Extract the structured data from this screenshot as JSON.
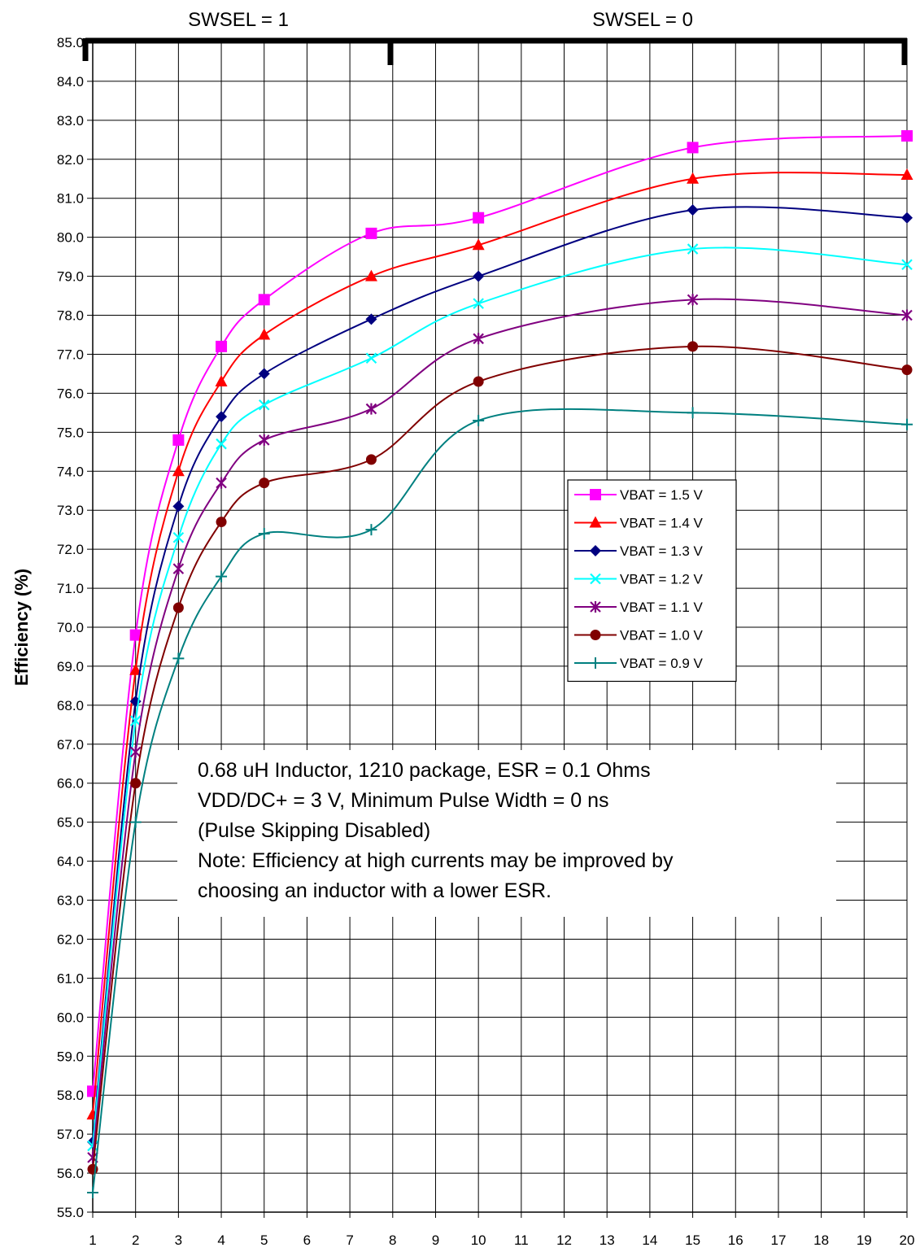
{
  "chart_data": {
    "type": "line",
    "title": "",
    "xlabel": "",
    "ylabel": "Efficiency (%)",
    "xlim": [
      1,
      20
    ],
    "ylim": [
      55,
      85
    ],
    "x_ticks": [
      1,
      2,
      3,
      4,
      5,
      6,
      7,
      8,
      9,
      10,
      11,
      12,
      13,
      14,
      15,
      16,
      17,
      18,
      19,
      20
    ],
    "y_ticks": [
      "55.0",
      "56.0",
      "57.0",
      "58.0",
      "59.0",
      "60.0",
      "61.0",
      "62.0",
      "63.0",
      "64.0",
      "65.0",
      "66.0",
      "67.0",
      "68.0",
      "69.0",
      "70.0",
      "71.0",
      "72.0",
      "73.0",
      "74.0",
      "75.0",
      "76.0",
      "77.0",
      "78.0",
      "79.0",
      "80.0",
      "81.0",
      "82.0",
      "83.0",
      "84.0",
      "85.0"
    ],
    "grid": true,
    "legend_position": "right-middle",
    "x": [
      1,
      2,
      3,
      4,
      5,
      7.5,
      10,
      15,
      20
    ],
    "series": [
      {
        "name": "VBAT = 1.5 V",
        "color": "#ff00ff",
        "marker": "square",
        "values": [
          58.1,
          69.8,
          74.8,
          77.2,
          78.4,
          80.1,
          80.5,
          82.3,
          82.6
        ]
      },
      {
        "name": "VBAT = 1.4 V",
        "color": "#ff0000",
        "marker": "triangle",
        "values": [
          57.5,
          68.9,
          74.0,
          76.3,
          77.5,
          79.0,
          79.8,
          81.5,
          81.6
        ]
      },
      {
        "name": "VBAT = 1.3 V",
        "color": "#000080",
        "marker": "diamond",
        "values": [
          56.8,
          68.1,
          73.1,
          75.4,
          76.5,
          77.9,
          79.0,
          80.7,
          80.5
        ]
      },
      {
        "name": "VBAT = 1.2 V",
        "color": "#00ffff",
        "marker": "x",
        "values": [
          56.7,
          67.6,
          72.3,
          74.7,
          75.7,
          76.9,
          78.3,
          79.7,
          79.3
        ]
      },
      {
        "name": "VBAT = 1.1 V",
        "color": "#800080",
        "marker": "asterisk",
        "values": [
          56.4,
          66.8,
          71.5,
          73.7,
          74.8,
          75.6,
          77.4,
          78.4,
          78.0
        ]
      },
      {
        "name": "VBAT = 1.0 V",
        "color": "#800000",
        "marker": "circle",
        "values": [
          56.1,
          66.0,
          70.5,
          72.7,
          73.7,
          74.3,
          76.3,
          77.2,
          76.6
        ]
      },
      {
        "name": "VBAT = 0.9 V",
        "color": "#008080",
        "marker": "plus",
        "values": [
          55.5,
          65.0,
          69.2,
          71.3,
          72.4,
          72.5,
          75.3,
          75.5,
          75.2
        ]
      }
    ],
    "mode_labels": [
      "SWSEL = 1",
      "SWSEL = 0"
    ],
    "annotation_lines": [
      "0.68 uH Inductor, 1210 package, ESR = 0.1 Ohms",
      "VDD/DC+ = 3 V, Minimum Pulse Width = 0 ns",
      "(Pulse Skipping Disabled)",
      "Note: Efficiency at high currents may be improved by",
      "choosing an inductor with a lower ESR."
    ]
  }
}
